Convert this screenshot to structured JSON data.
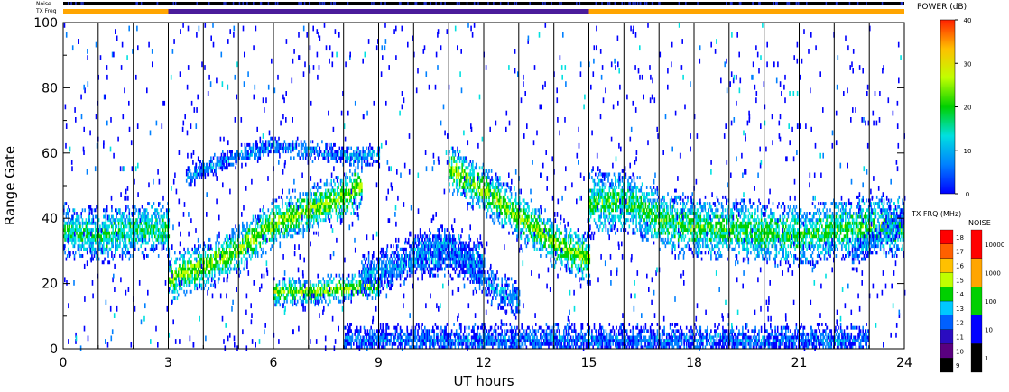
{
  "chart_data": {
    "type": "heatmap",
    "title": "",
    "xlabel": "UT hours",
    "ylabel": "Range Gate",
    "xlim": [
      0,
      24
    ],
    "ylim": [
      0,
      100
    ],
    "x_ticks": [
      "0",
      "3",
      "6",
      "9",
      "12",
      "15",
      "18",
      "21",
      "24"
    ],
    "y_ticks": [
      "0",
      "20",
      "40",
      "60",
      "80",
      "100"
    ],
    "scan_boundaries_hours": [
      1,
      2,
      3,
      4,
      5,
      6,
      7,
      8,
      9,
      10,
      11,
      12,
      13,
      14,
      15,
      16,
      17,
      18,
      19,
      20,
      21,
      22,
      23
    ],
    "strip_labels": {
      "noise": "Noise",
      "txfreq": "TX Freq"
    },
    "txfreq_segments": [
      {
        "from_hour": 0,
        "to_hour": 3,
        "color": "#ffa500"
      },
      {
        "from_hour": 3,
        "to_hour": 15,
        "color": "#4b1c9b"
      },
      {
        "from_hour": 15,
        "to_hour": 24,
        "color": "#ffa500"
      }
    ],
    "power_colorbar": {
      "label": "POWER (dB)",
      "ticks": [
        "0",
        "10",
        "20",
        "30",
        "40"
      ],
      "range": [
        0,
        40
      ],
      "colors": [
        "#0000ff",
        "#0080ff",
        "#00e0e0",
        "#00d000",
        "#c0ff00",
        "#ffc000",
        "#ff2000"
      ]
    },
    "txfreq_colorbar": {
      "label": "TX FRQ (MHz)",
      "ticks": [
        "9",
        "10",
        "11",
        "12",
        "13",
        "14",
        "15",
        "16",
        "17",
        "18"
      ],
      "colors": [
        "#000000",
        "#5a007f",
        "#2a0cc0",
        "#0060ff",
        "#00c8ff",
        "#00d000",
        "#c0ff00",
        "#ffc000",
        "#ff6000",
        "#ff0000"
      ]
    },
    "noise_colorbar": {
      "label": "NOISE",
      "ticks": [
        "1",
        "10",
        "100",
        "1000",
        "10000"
      ],
      "colors": [
        "#000000",
        "#0000ff",
        "#00d000",
        "#ffa500",
        "#ff0000"
      ]
    },
    "echo_bands": [
      {
        "name": "",
        "points": [
          [
            0,
            36
          ],
          [
            1,
            34
          ],
          [
            2,
            36
          ],
          [
            3,
            36
          ]
        ],
        "width": 8,
        "power": 18
      },
      {
        "name": "",
        "points": [
          [
            3,
            21
          ],
          [
            4,
            25
          ],
          [
            5,
            30
          ],
          [
            6,
            38
          ],
          [
            7,
            42
          ],
          [
            8,
            46
          ],
          [
            8.5,
            50
          ]
        ],
        "width": 7,
        "power": 24
      },
      {
        "name": "",
        "points": [
          [
            3.5,
            52
          ],
          [
            4.5,
            57
          ],
          [
            6,
            62
          ],
          [
            7,
            60
          ],
          [
            8.5,
            58
          ],
          [
            9,
            60
          ]
        ],
        "width": 3,
        "power": 10
      },
      {
        "name": "",
        "points": [
          [
            6,
            17
          ],
          [
            7,
            17
          ],
          [
            8,
            18
          ],
          [
            9,
            19
          ]
        ],
        "width": 4,
        "power": 24
      },
      {
        "name": "",
        "points": [
          [
            8.5,
            22
          ],
          [
            10,
            27
          ],
          [
            11,
            28
          ],
          [
            12,
            26
          ]
        ],
        "width": 6,
        "power": 10
      },
      {
        "name": "",
        "points": [
          [
            10,
            30
          ],
          [
            11,
            32
          ],
          [
            12,
            20
          ],
          [
            13,
            14
          ]
        ],
        "width": 5,
        "power": 10
      },
      {
        "name": "",
        "points": [
          [
            11,
            55
          ],
          [
            12,
            48
          ],
          [
            13,
            40
          ],
          [
            14,
            32
          ],
          [
            15,
            27
          ]
        ],
        "width": 7,
        "power": 24
      },
      {
        "name": "",
        "points": [
          [
            15,
            44
          ],
          [
            16,
            45
          ],
          [
            17,
            39
          ],
          [
            18,
            37
          ],
          [
            19,
            36
          ],
          [
            20,
            35
          ],
          [
            21,
            34
          ],
          [
            22,
            36
          ],
          [
            23,
            37
          ],
          [
            24,
            37
          ]
        ],
        "width": 9,
        "power": 20
      },
      {
        "name": "",
        "points": [
          [
            22.5,
            28
          ],
          [
            24,
            40
          ]
        ],
        "width": 4,
        "power": 10
      },
      {
        "name": "",
        "points": [
          [
            8,
            2
          ],
          [
            12,
            2
          ],
          [
            17,
            2
          ],
          [
            23,
            2
          ]
        ],
        "width": 5,
        "power": 8
      }
    ]
  }
}
